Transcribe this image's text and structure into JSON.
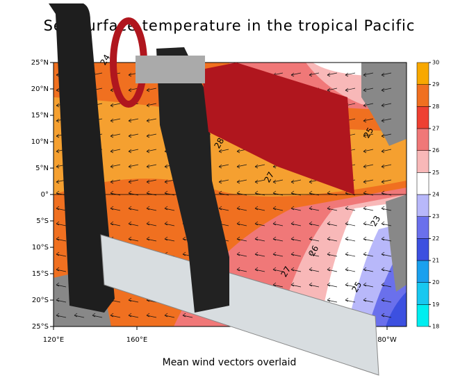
{
  "title": "Sea surface temperature in the tropical Pacific",
  "subtitle": "Mean wind vectors overlaid",
  "lat_ticks": [
    "25°N",
    "20°N",
    "15°N",
    "10°N",
    "5°N",
    "0°",
    "5°S",
    "10°S",
    "15°S",
    "20°S",
    "25°S"
  ],
  "lon_ticks": [
    "120°E",
    "160°E",
    "80°W"
  ],
  "colorbar": {
    "levels": [
      18,
      19,
      20,
      21,
      22,
      23,
      24,
      25,
      26,
      27,
      28,
      29,
      30
    ],
    "colors": [
      "#00eef0",
      "#18c8f0",
      "#1aa0ee",
      "#3c50e0",
      "#6a70ec",
      "#b8b8fa",
      "#ffffff",
      "#f8b8b8",
      "#f07878",
      "#ee4032",
      "#f07020",
      "#f8a800"
    ]
  },
  "contour_labels": [
    "24",
    "28",
    "27",
    "26",
    "27",
    "25",
    "23",
    "25"
  ]
}
